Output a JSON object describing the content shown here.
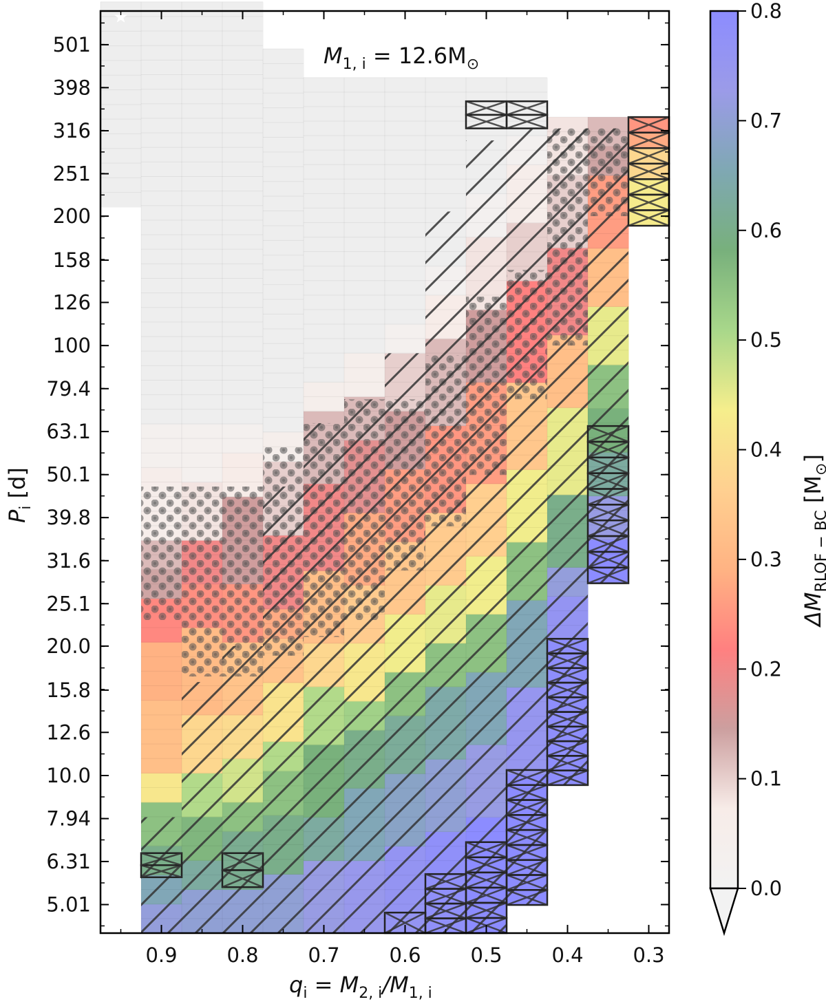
{
  "chart_data": {
    "type": "heatmap",
    "annotation": "M1,i = 12.6M⊙",
    "annotation_parts": {
      "sym": "M",
      "sub": "1, i",
      "rest": " = 12.6M",
      "sun": "⊙"
    },
    "xlabel": {
      "q": "q",
      "q_sub": "i",
      "mid": " = M",
      "m2_sub": "2, i",
      "slash": "/M",
      "m1_sub": "1, i"
    },
    "ylabel": {
      "p": "P",
      "p_sub": "i",
      "rest": " [d]"
    },
    "colorbar_label": {
      "delta": "ΔM",
      "sub": "RLOF − BC",
      "units_open": "[M",
      "units_sun": "⊙",
      "units_close": "]"
    },
    "x_ticks": [
      "0.9",
      "0.8",
      "0.7",
      "0.6",
      "0.5",
      "0.4",
      "0.3"
    ],
    "x_tick_values": [
      0.9,
      0.8,
      0.7,
      0.6,
      0.5,
      0.4,
      0.3
    ],
    "xlim": [
      0.975,
      0.275
    ],
    "x_reversed": true,
    "y_ticks": [
      "5.01",
      "6.31",
      "7.94",
      "10.0",
      "12.6",
      "15.8",
      "20.0",
      "25.1",
      "31.6",
      "39.8",
      "50.1",
      "63.1",
      "79.4",
      "100",
      "126",
      "158",
      "200",
      "251",
      "316",
      "398",
      "501"
    ],
    "y_scale": "log",
    "ylim": [
      4.3,
      600
    ],
    "colorbar_ticks": [
      "0.0",
      "0.1",
      "0.2",
      "0.3",
      "0.4",
      "0.5",
      "0.6",
      "0.7",
      "0.8"
    ],
    "colorbar_range": [
      0.0,
      0.8
    ],
    "colorbar_extend": "min",
    "colormap": [
      "#f2f2f2",
      "#f7ece8",
      "#cc9f9f",
      "#ff8080",
      "#ffb383",
      "#ffd090",
      "#f5ee8c",
      "#a8d78a",
      "#78b07c",
      "#7fa8b3",
      "#9b9be8",
      "#8c8cff"
    ],
    "colors": {
      "no_data": "#eeeeee",
      "axis": "#000000",
      "marker": "#ffffff"
    },
    "q_columns": [
      0.95,
      0.9,
      0.85,
      0.8,
      0.75,
      0.7,
      0.65,
      0.6,
      0.55,
      0.5,
      0.45,
      0.4,
      0.35,
      0.3
    ],
    "columns": [
      {
        "q": 0.95,
        "p_min": 210,
        "p_max": 630,
        "values": []
      },
      {
        "q": 0.9,
        "p_min": 4.3,
        "p_max": 630,
        "values": [
          [
            4.3,
            0.71
          ],
          [
            5.2,
            0.66
          ],
          [
            6.0,
            0.6
          ],
          [
            7.1,
            0.55
          ],
          [
            8.4,
            0.42
          ],
          [
            10.0,
            0.32
          ],
          [
            15.0,
            0.29
          ],
          [
            21.0,
            0.23
          ],
          [
            26.0,
            0.14
          ],
          [
            30.0,
            0.12
          ],
          [
            35.0,
            0.06
          ],
          [
            54.0,
            0.03
          ],
          [
            65.0,
            0.0
          ]
        ]
      },
      {
        "q": 0.85,
        "p_min": 4.3,
        "p_max": 630,
        "values": [
          [
            4.3,
            0.7
          ],
          [
            5.4,
            0.63
          ],
          [
            6.6,
            0.57
          ],
          [
            8.2,
            0.5
          ],
          [
            10.0,
            0.38
          ],
          [
            14.0,
            0.31
          ],
          [
            22.0,
            0.24
          ],
          [
            27.0,
            0.2
          ],
          [
            35.0,
            0.08
          ],
          [
            50.0,
            0.03
          ],
          [
            65.0,
            0.0
          ]
        ]
      },
      {
        "q": 0.8,
        "p_min": 4.3,
        "p_max": 630,
        "values": [
          [
            4.3,
            0.7
          ],
          [
            5.6,
            0.61
          ],
          [
            7.2,
            0.55
          ],
          [
            9.0,
            0.47
          ],
          [
            11.0,
            0.39
          ],
          [
            14.0,
            0.33
          ],
          [
            20.0,
            0.25
          ],
          [
            27.0,
            0.15
          ],
          [
            45.0,
            0.07
          ],
          [
            56.0,
            0.03
          ],
          [
            65.0,
            0.0
          ]
        ]
      },
      {
        "q": 0.75,
        "p_min": 4.3,
        "p_max": 490,
        "values": [
          [
            4.3,
            0.7
          ],
          [
            6.0,
            0.6
          ],
          [
            7.9,
            0.55
          ],
          [
            10.0,
            0.5
          ],
          [
            12.0,
            0.41
          ],
          [
            16.0,
            0.33
          ],
          [
            21.0,
            0.28
          ],
          [
            24.0,
            0.2
          ],
          [
            35.0,
            0.1
          ],
          [
            52.0,
            0.05
          ],
          [
            65.0,
            0.0
          ]
        ]
      },
      {
        "q": 0.7,
        "p_min": 4.3,
        "p_max": 420,
        "values": [
          [
            4.3,
            0.72
          ],
          [
            6.3,
            0.63
          ],
          [
            8.0,
            0.58
          ],
          [
            12.0,
            0.5
          ],
          [
            16.0,
            0.38
          ],
          [
            20.0,
            0.32
          ],
          [
            30.0,
            0.2
          ],
          [
            48.0,
            0.12
          ],
          [
            68.0,
            0.05
          ],
          [
            82.0,
            0.0
          ]
        ]
      },
      {
        "q": 0.65,
        "p_min": 4.3,
        "p_max": 420,
        "values": [
          [
            4.3,
            0.74
          ],
          [
            6.5,
            0.66
          ],
          [
            9.0,
            0.6
          ],
          [
            13.0,
            0.52
          ],
          [
            15.0,
            0.42
          ],
          [
            20.0,
            0.35
          ],
          [
            28.0,
            0.28
          ],
          [
            40.0,
            0.18
          ],
          [
            60.0,
            0.12
          ],
          [
            75.0,
            0.05
          ],
          [
            93.0,
            0.0
          ]
        ]
      },
      {
        "q": 0.6,
        "p_min": 4.3,
        "p_max": 420,
        "values": [
          [
            4.3,
            0.76
          ],
          [
            7.0,
            0.68
          ],
          [
            10.0,
            0.62
          ],
          [
            14.0,
            0.55
          ],
          [
            17.0,
            0.44
          ],
          [
            24.0,
            0.34
          ],
          [
            34.0,
            0.26
          ],
          [
            50.0,
            0.15
          ],
          [
            70.0,
            0.1
          ],
          [
            96.0,
            0.03
          ],
          [
            115.0,
            0.0
          ]
        ]
      },
      {
        "q": 0.55,
        "p_min": 4.3,
        "p_max": 420,
        "values": [
          [
            4.3,
            0.78
          ],
          [
            7.5,
            0.7
          ],
          [
            11.0,
            0.64
          ],
          [
            16.0,
            0.55
          ],
          [
            20.0,
            0.45
          ],
          [
            27.0,
            0.35
          ],
          [
            40.0,
            0.25
          ],
          [
            65.0,
            0.12
          ],
          [
            100.0,
            0.07
          ],
          [
            130.0,
            0.02
          ],
          [
            150.0,
            0.0
          ]
        ]
      },
      {
        "q": 0.5,
        "p_min": 4.3,
        "p_max": 420,
        "values": [
          [
            4.3,
            0.8
          ],
          [
            8.0,
            0.72
          ],
          [
            12.0,
            0.66
          ],
          [
            18.0,
            0.55
          ],
          [
            24.0,
            0.44
          ],
          [
            32.0,
            0.36
          ],
          [
            48.0,
            0.26
          ],
          [
            80.0,
            0.15
          ],
          [
            120.0,
            0.08
          ],
          [
            180.0,
            0.02
          ],
          [
            230.0,
            0.0
          ]
        ]
      },
      {
        "q": 0.45,
        "p_min": 5.0,
        "p_max": 420,
        "values": [
          [
            5.0,
            0.8
          ],
          [
            10.0,
            0.75
          ],
          [
            16.0,
            0.66
          ],
          [
            25.0,
            0.55
          ],
          [
            35.0,
            0.44
          ],
          [
            50.0,
            0.34
          ],
          [
            80.0,
            0.22
          ],
          [
            140.0,
            0.1
          ],
          [
            200.0,
            0.06
          ],
          [
            260.0,
            0.02
          ],
          [
            310.0,
            0.0
          ]
        ]
      },
      {
        "q": 0.4,
        "p_min": 9.5,
        "p_max": 340,
        "values": [
          [
            9.5,
            0.79
          ],
          [
            20.0,
            0.76
          ],
          [
            26.0,
            0.71
          ],
          [
            31.0,
            0.6
          ],
          [
            45.0,
            0.45
          ],
          [
            70.0,
            0.32
          ],
          [
            110.0,
            0.2
          ],
          [
            170.0,
            0.1
          ],
          [
            240.0,
            0.08
          ]
        ]
      },
      {
        "q": 0.35,
        "p_min": 28.0,
        "p_max": 340,
        "values": [
          [
            28.0,
            0.8
          ],
          [
            36.0,
            0.72
          ],
          [
            45.0,
            0.63
          ],
          [
            55.0,
            0.58
          ],
          [
            70.0,
            0.55
          ],
          [
            90.0,
            0.45
          ],
          [
            120.0,
            0.32
          ],
          [
            170.0,
            0.26
          ],
          [
            250.0,
            0.14
          ],
          [
            300.0,
            0.12
          ]
        ]
      },
      {
        "q": 0.3,
        "p_min": 190,
        "p_max": 340,
        "values": [
          [
            190.0,
            0.43
          ],
          [
            240.0,
            0.38
          ],
          [
            280.0,
            0.28
          ],
          [
            320.0,
            0.25
          ]
        ]
      }
    ],
    "dotted_regions": [
      {
        "q": 0.9,
        "p_min": 23.0,
        "p_max": 47.0
      },
      {
        "q": 0.85,
        "p_min": 17.0,
        "p_max": 47.0
      },
      {
        "q": 0.8,
        "p_min": 17.0,
        "p_max": 47.0
      },
      {
        "q": 0.75,
        "p_min": 19.0,
        "p_max": 58.0
      },
      {
        "q": 0.7,
        "p_min": 21.0,
        "p_max": 66.0
      },
      {
        "q": 0.65,
        "p_min": 23.0,
        "p_max": 75.0
      },
      {
        "q": 0.6,
        "p_min": 30.0,
        "p_max": 75.0
      },
      {
        "q": 0.55,
        "p_min": 38.0,
        "p_max": 95.0
      },
      {
        "q": 0.5,
        "p_min": 50.0,
        "p_max": 130.0
      },
      {
        "q": 0.45,
        "p_min": 75.0,
        "p_max": 150.0
      },
      {
        "q": 0.4,
        "p_min": 100.0,
        "p_max": 320.0
      },
      {
        "q": 0.35,
        "p_min": 200.0,
        "p_max": 320.0
      }
    ],
    "hatched_regions": [
      {
        "q": 0.9,
        "p_min": 4.3,
        "p_max": 8.0
      },
      {
        "q": 0.85,
        "p_min": 4.3,
        "p_max": 16.5
      },
      {
        "q": 0.8,
        "p_min": 4.3,
        "p_max": 20.0
      },
      {
        "q": 0.75,
        "p_min": 4.3,
        "p_max": 47.0
      },
      {
        "q": 0.7,
        "p_min": 4.3,
        "p_max": 66.0
      },
      {
        "q": 0.65,
        "p_min": 4.3,
        "p_max": 75.0
      },
      {
        "q": 0.6,
        "p_min": 4.3,
        "p_max": 96.0
      },
      {
        "q": 0.55,
        "p_min": 4.3,
        "p_max": 205.0
      },
      {
        "q": 0.5,
        "p_min": 4.3,
        "p_max": 300.0
      },
      {
        "q": 0.45,
        "p_min": 5.0,
        "p_max": 320.0
      },
      {
        "q": 0.4,
        "p_min": 9.5,
        "p_max": 320.0
      },
      {
        "q": 0.35,
        "p_min": 28.0,
        "p_max": 320.0
      }
    ],
    "crossed_cells": [
      {
        "q": 0.9,
        "p_min": 5.8,
        "p_max": 6.6
      },
      {
        "q": 0.8,
        "p_min": 5.5,
        "p_max": 6.6
      },
      {
        "q": 0.6,
        "p_min": 4.3,
        "p_max": 4.8
      },
      {
        "q": 0.55,
        "p_min": 4.3,
        "p_max": 5.9
      },
      {
        "q": 0.5,
        "p_min": 4.3,
        "p_max": 7.0
      },
      {
        "q": 0.45,
        "p_min": 5.0,
        "p_max": 10.3
      },
      {
        "q": 0.4,
        "p_min": 9.5,
        "p_max": 20.8
      },
      {
        "q": 0.35,
        "p_min": 28.0,
        "p_max": 65.0
      },
      {
        "q": 0.5,
        "p_min": 320.0,
        "p_max": 370.0
      },
      {
        "q": 0.45,
        "p_min": 320.0,
        "p_max": 370.0
      },
      {
        "q": 0.3,
        "p_min": 190.0,
        "p_max": 340.0
      }
    ],
    "cross_row_dp": 0.035,
    "star_marker": {
      "q": 0.95,
      "p": 560
    }
  }
}
